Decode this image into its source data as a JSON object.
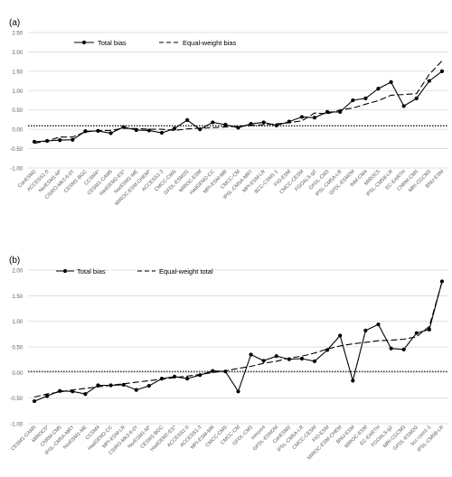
{
  "chart_data": [
    {
      "type": "line",
      "panel_label": "(a)",
      "ylim": [
        -1.0,
        2.5
      ],
      "ytick_labels": [
        "2.50",
        "2.00",
        "1.50",
        "1.00",
        "0.50",
        "0.00",
        "-0.50",
        "-1.00"
      ],
      "grid": true,
      "legend_position": "top-left",
      "categories": [
        "CanESM2",
        "ACCESS1-0",
        "NorESM1-M*",
        "CSIRO-Mk3-6-0†",
        "CESM1-BGC",
        "CCSM4*",
        "CESM1-CAM5",
        "HadGEM2-ES*",
        "NorESM1-ME",
        "MIROC-ESM-CHEM*",
        "ACCESS1-3",
        "CMCC-CMS",
        "GFDL-ESM2G",
        "MIROC-ESM",
        "HadGEM2-CC",
        "MPI-ESM-MR",
        "CMCC-CM",
        "IPSL-CM5A-MR†",
        "MPI-ESM-LR",
        "BCC-CSM1-1",
        "FIO-ESM",
        "CMCC-CESM",
        "FGOALS-g2",
        "GFDL-CM3",
        "IPSL-CM5A-LR",
        "GFDL-ESM2M",
        "INM-CM4",
        "MIROC5",
        "IPSL-CM5B-LR",
        "EC-EARTH",
        "CNRM-CM5",
        "MRI-CGCM3",
        "BNU-ESM"
      ],
      "series": [
        {
          "name": "Total bias",
          "style": "solid-marker",
          "values": [
            -0.32,
            -0.3,
            -0.28,
            -0.27,
            -0.05,
            -0.04,
            -0.1,
            0.06,
            -0.02,
            -0.03,
            -0.09,
            0.02,
            0.24,
            0.0,
            0.18,
            0.12,
            0.04,
            0.14,
            0.18,
            0.1,
            0.2,
            0.32,
            0.3,
            0.45,
            0.45,
            0.75,
            0.8,
            1.05,
            1.22,
            0.6,
            0.8,
            1.25,
            1.5
          ]
        },
        {
          "name": "Equal-weight bias",
          "style": "dashed",
          "values": [
            -0.36,
            -0.3,
            -0.2,
            -0.2,
            -0.07,
            -0.03,
            -0.03,
            0.03,
            0.02,
            0.0,
            0.0,
            -0.03,
            0.01,
            0.03,
            0.04,
            0.06,
            0.08,
            0.1,
            0.12,
            0.14,
            0.17,
            0.22,
            0.42,
            0.4,
            0.5,
            0.55,
            0.65,
            0.74,
            0.88,
            0.9,
            0.92,
            1.42,
            1.77
          ]
        }
      ],
      "reference_line": {
        "style": "dotted",
        "value": 0.09
      }
    },
    {
      "type": "line",
      "panel_label": "(b)",
      "ylim": [
        -1.0,
        2.0
      ],
      "ytick_labels": [
        "2.00",
        "1.50",
        "1.00",
        "0.50",
        "0.00",
        "-0.50",
        "-1.00"
      ],
      "grid": true,
      "legend_position": "top-left",
      "categories": [
        "CESM1-CAM5",
        "MIROC5*",
        "CNRM-CM5",
        "IPSL-CM5A-MR†",
        "NorESM1-ME",
        "CCSM4",
        "HadGEM2-CC",
        "MPI-ESM-LR",
        "CSIRO-Mk3-6-0†",
        "NorESM1-M*",
        "CESM1-BGC",
        "HadGEM2-ES*",
        "ACCESS1-0",
        "ACCESS1-3",
        "MPI-ESM-MR",
        "CMCC-CMS",
        "CMCC-CM",
        "GFDL-CM3",
        "inmcm4",
        "GFDL-ESM2M",
        "CanESM2",
        "IPSL-CM5A-LR",
        "CMCC-CESM",
        "FIO-ESM",
        "MIROC-ESM-CHEM",
        "BNU-ESM",
        "MIROC-ESM",
        "EC-EARTH",
        "FGOALS-g2",
        "MRI-CGCM3",
        "GFDL-ESM2G",
        "bcc-csm1-1",
        "IPSL-CM5B-LR"
      ],
      "series": [
        {
          "name": "Total bias",
          "style": "solid-marker",
          "values": [
            -0.56,
            -0.46,
            -0.36,
            -0.37,
            -0.42,
            -0.25,
            -0.25,
            -0.24,
            -0.34,
            -0.26,
            -0.12,
            -0.08,
            -0.12,
            -0.05,
            0.03,
            0.02,
            -0.37,
            0.35,
            0.23,
            0.32,
            0.26,
            0.27,
            0.22,
            0.44,
            0.72,
            -0.16,
            0.82,
            0.94,
            0.47,
            0.45,
            0.77,
            0.84,
            1.78
          ]
        },
        {
          "name": "Equal-weight total",
          "style": "dashed",
          "values": [
            -0.48,
            -0.42,
            -0.38,
            -0.34,
            -0.31,
            -0.28,
            -0.25,
            -0.22,
            -0.19,
            -0.16,
            -0.13,
            -0.1,
            -0.07,
            -0.04,
            0.0,
            0.03,
            0.08,
            0.12,
            0.18,
            0.22,
            0.28,
            0.32,
            0.38,
            0.46,
            0.52,
            0.56,
            0.59,
            0.62,
            0.63,
            0.65,
            0.7,
            0.9,
            1.77
          ]
        }
      ],
      "reference_line": {
        "style": "dotted",
        "value": 0.02
      }
    }
  ]
}
